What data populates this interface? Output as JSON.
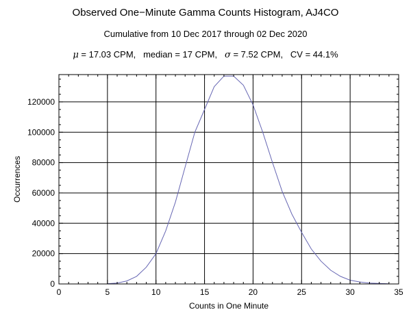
{
  "header": {
    "title": "Observed One−Minute Gamma Counts Histogram, AJ4CO",
    "subtitle": "Cumulative from 10 Dec 2017 through 02 Dec 2020",
    "stats": {
      "mu_symbol": "μ",
      "mu_text": " = 17.03 CPM,   median = 17 CPM,   ",
      "sigma_symbol": "σ",
      "sigma_text": " = 7.52 CPM,   CV = 44.1%"
    }
  },
  "chart_data": {
    "type": "line",
    "title": "Observed One−Minute Gamma Counts Histogram, AJ4CO",
    "subtitle": "Cumulative from 10 Dec 2017 through 02 Dec 2020",
    "xlabel": "Counts in One Minute",
    "ylabel": "Occurrences",
    "xlim": [
      0,
      35
    ],
    "ylim": [
      0,
      138000
    ],
    "grid": true,
    "line_color": "#6666b3",
    "x_ticks": [
      0,
      5,
      10,
      15,
      20,
      25,
      30,
      35
    ],
    "y_ticks": [
      0,
      20000,
      40000,
      60000,
      80000,
      100000,
      120000
    ],
    "x_tick_labels": [
      "0",
      "5",
      "10",
      "15",
      "20",
      "25",
      "30",
      "35"
    ],
    "y_tick_labels": [
      "0",
      "20000",
      "40000",
      "60000",
      "80000",
      "100000",
      "120000"
    ],
    "series": [
      {
        "x": [
          5,
          6,
          7,
          8,
          9,
          10,
          11,
          12,
          13,
          14,
          15,
          16,
          17,
          18,
          19,
          20,
          21,
          22,
          23,
          24,
          25,
          26,
          27,
          28,
          29,
          30,
          31,
          32,
          33,
          34
        ],
        "values": [
          200,
          600,
          2000,
          5000,
          11000,
          20000,
          35000,
          54000,
          77000,
          100000,
          115000,
          130000,
          137000,
          137000,
          131000,
          118000,
          100000,
          80000,
          61000,
          46000,
          34000,
          23000,
          15000,
          9000,
          5000,
          2500,
          1300,
          600,
          300,
          100
        ]
      }
    ]
  }
}
